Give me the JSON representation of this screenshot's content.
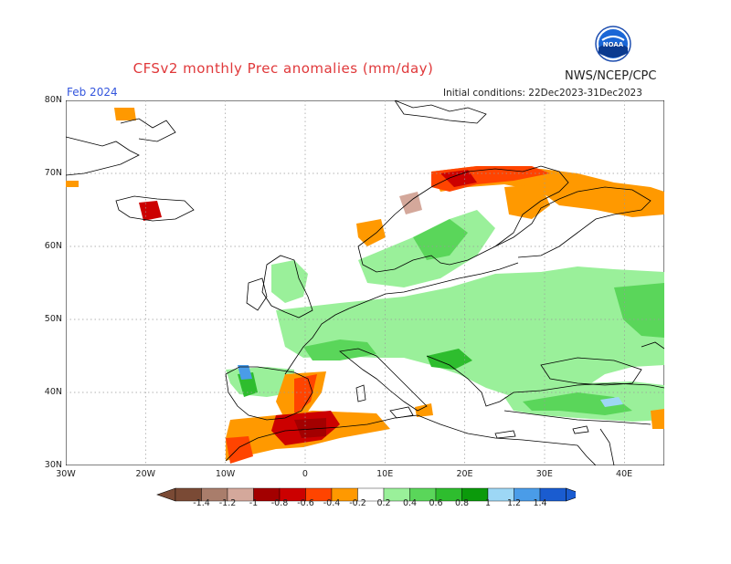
{
  "header": {
    "title": "CFSv2 monthly Prec anomalies (mm/day)",
    "org": "NWS/NCEP/CPC",
    "month": "Feb 2024",
    "init": "Initial conditions: 22Dec2023-31Dec2023",
    "logo_text": "NOAA"
  },
  "axes": {
    "lat_labels": [
      "80N",
      "70N",
      "60N",
      "50N",
      "40N",
      "30N"
    ],
    "lon_labels": [
      "30W",
      "20W",
      "10W",
      "0",
      "10E",
      "20E",
      "30E",
      "40E"
    ]
  },
  "legend": {
    "labels": [
      "-1.4",
      "-1.2",
      "-1",
      "-0.8",
      "-0.6",
      "-0.4",
      "-0.2",
      "0.2",
      "0.4",
      "0.6",
      "0.8",
      "1",
      "1.2",
      "1.4"
    ],
    "colors": [
      "#7a4a35",
      "#a97d6b",
      "#d4a89b",
      "#a30000",
      "#cc0000",
      "#ff4400",
      "#ff9900",
      "#ffffff",
      "#9af09a",
      "#5ad65a",
      "#2ebd2e",
      "#0b9a0b",
      "#9dd7f5",
      "#4a9ce8",
      "#1a5cd0"
    ]
  },
  "colors": {
    "title": "#e0383a",
    "month": "#3355dd",
    "coast": "#000000",
    "grid": "#999999"
  }
}
